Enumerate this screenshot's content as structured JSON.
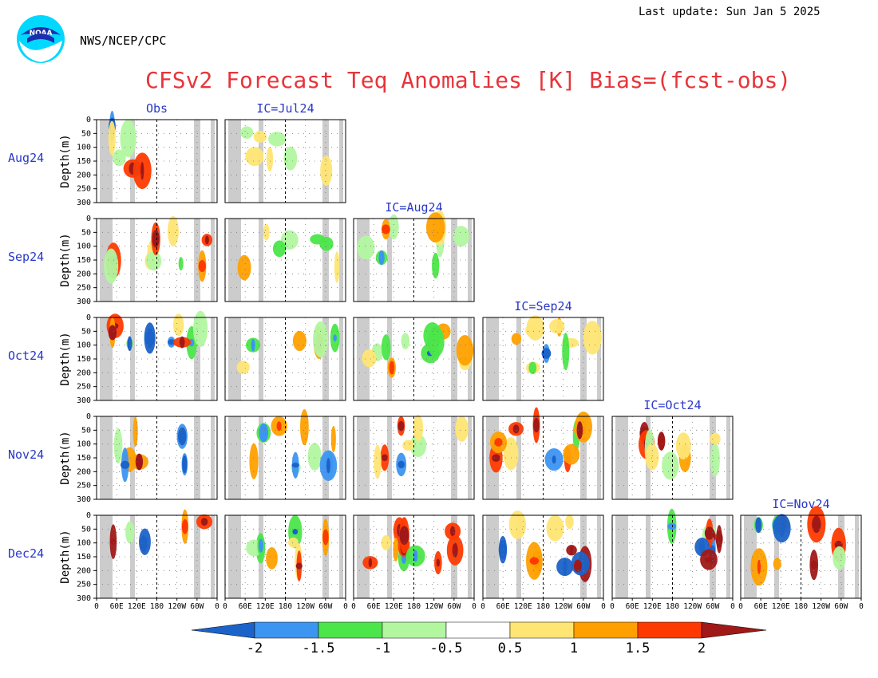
{
  "header": {
    "last_update": "Last update: Sun Jan 5 2025",
    "agency": "NWS/NCEP/CPC",
    "title": "CFSv2 Forecast Teq Anomalies [K] Bias=(fcst-obs)"
  },
  "colors": {
    "title": "#e8343a",
    "label_blue": "#2838c8",
    "shade_gray": "#cccccc",
    "levels": [
      "#1b63c9",
      "#3d95f2",
      "#4ce64a",
      "#b2f7a0",
      "#ffffff",
      "#ffe573",
      "#ffa000",
      "#ff3a00",
      "#a01818"
    ]
  },
  "chart_data": {
    "type": "heatmap",
    "column_headers": [
      "Obs",
      "IC=Jul24",
      "IC=Aug24",
      "IC=Sep24",
      "IC=Oct24",
      "IC=Nov24"
    ],
    "row_labels": [
      "Aug24",
      "Sep24",
      "Oct24",
      "Nov24",
      "Dec24"
    ],
    "ylabel": "Depth(m)",
    "y_ticks": [
      "0",
      "50",
      "100",
      "150",
      "200",
      "250",
      "300"
    ],
    "x_ticks": [
      "0",
      "60E",
      "120E",
      "180",
      "120W",
      "60W",
      "0"
    ],
    "ylim": [
      0,
      300
    ],
    "xlim": [
      "0",
      "0"
    ],
    "colorbar": {
      "ticks": [
        "-2",
        "-1.5",
        "-1",
        "-0.5",
        "0.5",
        "1",
        "1.5",
        "2"
      ],
      "levels": [
        -2,
        -1.5,
        -1,
        -0.5,
        0.5,
        1,
        1.5,
        2
      ]
    },
    "panels_per_row": [
      2,
      3,
      4,
      5,
      6
    ]
  }
}
